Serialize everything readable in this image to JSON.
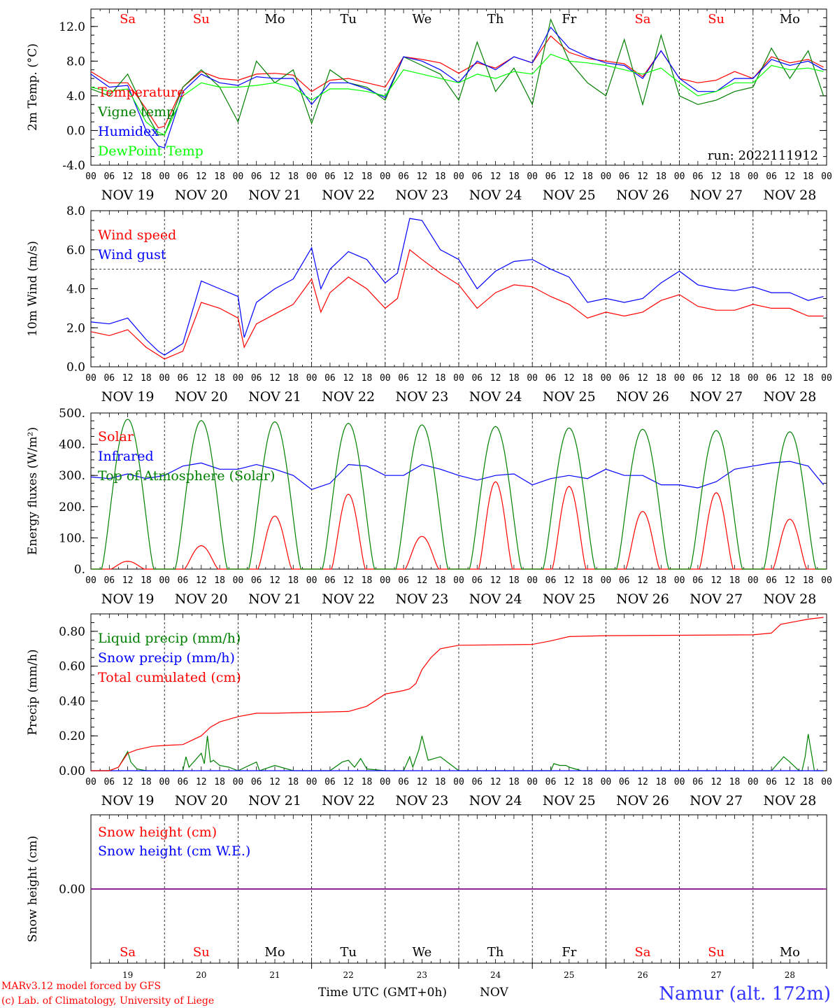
{
  "chart_data": [
    {
      "type": "line",
      "ylabel": "2m Temp. (°C)",
      "ylim": [
        -4,
        14
      ],
      "yticks": [
        "-4.0",
        "0.0",
        "4.0",
        "8.0",
        "12.0"
      ],
      "legend": [
        "Temperature",
        "Vigne temp",
        "Humidex",
        "DewPoint Temp"
      ],
      "run_label": "run: 2022111912",
      "series": [
        {
          "name": "Temperature",
          "color": "#ff0000",
          "x": [
            0,
            6,
            12,
            18,
            22,
            24,
            30,
            36,
            42,
            48,
            54,
            60,
            66,
            72,
            78,
            84,
            90,
            96,
            102,
            108,
            114,
            120,
            126,
            132,
            138,
            144,
            150,
            156,
            162,
            168,
            174,
            180,
            186,
            192,
            198,
            204,
            210,
            216,
            222,
            228,
            234,
            239
          ],
          "y": [
            6.8,
            5.5,
            5.5,
            2.5,
            0.3,
            0.5,
            5.0,
            6.8,
            6.0,
            5.8,
            6.5,
            6.6,
            6.4,
            4.5,
            5.8,
            6.0,
            5.5,
            5.0,
            8.5,
            8.2,
            7.8,
            6.6,
            7.8,
            7.2,
            8.5,
            7.8,
            10.9,
            9.0,
            8.3,
            8.0,
            7.7,
            6.2,
            9.2,
            6.0,
            5.5,
            5.8,
            6.8,
            6.0,
            8.5,
            7.8,
            8.2,
            7.3
          ]
        },
        {
          "name": "Vigne temp",
          "color": "#008000",
          "x": [
            0,
            6,
            12,
            18,
            22,
            24,
            30,
            36,
            42,
            48,
            54,
            60,
            66,
            72,
            78,
            84,
            90,
            96,
            102,
            108,
            114,
            120,
            126,
            132,
            138,
            144,
            150,
            156,
            162,
            168,
            174,
            180,
            186,
            192,
            198,
            204,
            210,
            216,
            222,
            228,
            234,
            239
          ],
          "y": [
            4.8,
            4.0,
            6.5,
            2.0,
            -0.5,
            -0.5,
            5.0,
            7.0,
            5.0,
            1.0,
            8.0,
            5.5,
            7.0,
            0.8,
            7.0,
            5.5,
            5.0,
            3.5,
            8.5,
            7.5,
            6.5,
            3.5,
            10.2,
            4.5,
            7.2,
            3.0,
            12.8,
            8.0,
            5.5,
            4.0,
            10.5,
            3.0,
            11.0,
            4.0,
            3.0,
            3.5,
            4.5,
            5.0,
            9.5,
            6.0,
            9.2,
            4.0
          ]
        },
        {
          "name": "Humidex",
          "color": "#0000ff",
          "x": [
            0,
            6,
            12,
            18,
            22,
            24,
            30,
            36,
            42,
            48,
            54,
            60,
            66,
            72,
            78,
            84,
            90,
            96,
            102,
            108,
            114,
            120,
            126,
            132,
            138,
            144,
            150,
            156,
            162,
            168,
            174,
            180,
            186,
            192,
            198,
            204,
            210,
            216,
            222,
            228,
            234,
            239
          ],
          "y": [
            6.5,
            5.0,
            5.2,
            0.0,
            -1.8,
            -2.0,
            4.5,
            6.5,
            5.5,
            5.2,
            6.2,
            6.0,
            6.0,
            3.0,
            5.5,
            5.5,
            4.8,
            3.8,
            8.5,
            8.0,
            7.0,
            5.5,
            8.0,
            7.0,
            8.5,
            7.8,
            11.9,
            9.5,
            8.5,
            7.8,
            7.5,
            6.0,
            9.2,
            6.0,
            4.5,
            4.5,
            6.0,
            6.0,
            8.2,
            7.5,
            8.0,
            7.0
          ]
        },
        {
          "name": "DewPoint Temp",
          "color": "#00ff00",
          "x": [
            0,
            6,
            12,
            18,
            22,
            24,
            30,
            36,
            42,
            48,
            54,
            60,
            66,
            72,
            78,
            84,
            90,
            96,
            102,
            108,
            114,
            120,
            126,
            132,
            138,
            144,
            150,
            156,
            162,
            168,
            174,
            180,
            186,
            192,
            198,
            204,
            210,
            216,
            222,
            228,
            234,
            239
          ],
          "y": [
            5.0,
            4.5,
            4.8,
            1.0,
            -0.2,
            -0.5,
            4.0,
            5.5,
            5.0,
            5.0,
            5.2,
            5.5,
            5.0,
            3.5,
            4.8,
            4.8,
            4.5,
            4.0,
            7.0,
            6.5,
            6.0,
            5.5,
            6.5,
            6.0,
            6.8,
            6.5,
            8.8,
            8.0,
            7.8,
            7.5,
            7.0,
            6.5,
            7.2,
            5.5,
            4.0,
            4.5,
            5.5,
            5.5,
            7.5,
            7.0,
            7.2,
            6.8
          ]
        }
      ]
    },
    {
      "type": "line",
      "ylabel": "10m Wind (m/s)",
      "ylim": [
        0,
        8
      ],
      "yticks": [
        "0.0",
        "2.0",
        "4.0",
        "6.0",
        "8.0"
      ],
      "reference_line": 5.0,
      "legend": [
        "Wind speed",
        "Wind gust"
      ],
      "series": [
        {
          "name": "Wind speed",
          "color": "#ff0000",
          "x": [
            0,
            6,
            12,
            18,
            22,
            24,
            30,
            36,
            42,
            48,
            50,
            54,
            60,
            66,
            72,
            75,
            78,
            84,
            90,
            96,
            100,
            104,
            108,
            114,
            120,
            126,
            132,
            138,
            144,
            150,
            156,
            162,
            168,
            174,
            180,
            186,
            192,
            198,
            204,
            210,
            216,
            222,
            228,
            234,
            239
          ],
          "y": [
            1.8,
            1.6,
            1.9,
            1.0,
            0.6,
            0.4,
            0.8,
            3.3,
            3.0,
            2.5,
            1.0,
            2.2,
            2.7,
            3.2,
            4.5,
            2.8,
            3.8,
            4.6,
            4.0,
            3.0,
            3.5,
            6.0,
            5.5,
            4.8,
            4.2,
            3.0,
            3.8,
            4.2,
            4.1,
            3.6,
            3.2,
            2.5,
            2.8,
            2.6,
            2.8,
            3.4,
            3.7,
            3.1,
            2.9,
            2.9,
            3.2,
            3.0,
            3.0,
            2.6,
            2.6
          ]
        },
        {
          "name": "Wind gust",
          "color": "#0000ff",
          "x": [
            0,
            6,
            12,
            18,
            22,
            24,
            30,
            36,
            42,
            48,
            50,
            54,
            60,
            66,
            72,
            75,
            78,
            84,
            90,
            96,
            100,
            104,
            108,
            114,
            120,
            126,
            132,
            138,
            144,
            150,
            156,
            162,
            168,
            174,
            180,
            186,
            192,
            198,
            204,
            210,
            216,
            222,
            228,
            234,
            239
          ],
          "y": [
            2.3,
            2.2,
            2.5,
            1.4,
            0.8,
            0.6,
            1.2,
            4.4,
            4.0,
            3.6,
            1.5,
            3.3,
            4.0,
            4.5,
            6.1,
            4.0,
            5.0,
            5.9,
            5.5,
            4.3,
            4.8,
            7.6,
            7.5,
            6.0,
            5.5,
            4.0,
            4.9,
            5.4,
            5.5,
            5.0,
            4.6,
            3.3,
            3.5,
            3.3,
            3.5,
            4.3,
            4.9,
            4.2,
            4.0,
            3.9,
            4.1,
            3.8,
            3.8,
            3.4,
            3.6
          ]
        }
      ]
    },
    {
      "type": "line",
      "ylabel": "Energy fluxes (W/m²)",
      "ylim": [
        0,
        500
      ],
      "yticks": [
        "0.",
        "100.",
        "200.",
        "300.",
        "400.",
        "500."
      ],
      "legend": [
        "Solar",
        "Infrared",
        "Top of Atmosphere (Solar)"
      ],
      "series": [
        {
          "name": "Solar",
          "color": "#ff0000",
          "peaks": [
            25,
            75,
            170,
            240,
            105,
            280,
            265,
            185,
            245,
            160
          ]
        },
        {
          "name": "Infrared",
          "color": "#0000ff",
          "x": [
            0,
            6,
            12,
            18,
            24,
            30,
            36,
            42,
            48,
            54,
            60,
            66,
            72,
            78,
            84,
            90,
            96,
            102,
            108,
            114,
            120,
            126,
            132,
            138,
            144,
            150,
            156,
            162,
            168,
            174,
            180,
            186,
            192,
            198,
            204,
            210,
            216,
            222,
            228,
            234,
            239
          ],
          "y": [
            295,
            290,
            305,
            290,
            300,
            330,
            340,
            320,
            320,
            335,
            320,
            300,
            255,
            275,
            335,
            330,
            300,
            300,
            335,
            320,
            300,
            285,
            300,
            305,
            270,
            290,
            300,
            290,
            320,
            300,
            300,
            270,
            270,
            260,
            280,
            320,
            330,
            340,
            345,
            330,
            270
          ]
        },
        {
          "name": "Top of Atmosphere (Solar)",
          "color": "#008000",
          "peaks": [
            480,
            476,
            472,
            467,
            462,
            457,
            452,
            448,
            444,
            440
          ]
        }
      ]
    },
    {
      "type": "line",
      "ylabel": "Precip (mm/h)",
      "ylim": [
        0,
        0.9
      ],
      "yticks": [
        "0.00",
        "0.20",
        "0.40",
        "0.60",
        "0.80"
      ],
      "legend": [
        "Liquid precip (mm/h)",
        "Snow precip (mm/h)",
        "Total cumulated (cm)"
      ],
      "series": [
        {
          "name": "Liquid precip (mm/h)",
          "color": "#008000",
          "x": [
            0,
            6,
            9,
            11,
            12,
            13,
            15,
            18,
            24,
            30,
            31,
            32,
            36,
            37,
            38,
            39,
            40,
            42,
            45,
            48,
            54,
            55,
            60,
            66,
            72,
            78,
            82,
            84,
            86,
            88,
            90,
            96,
            102,
            104,
            105,
            107,
            108,
            110,
            114,
            120,
            144,
            150,
            151,
            153,
            155,
            156,
            158,
            160,
            168,
            216,
            222,
            225,
            226,
            228,
            231,
            232,
            233,
            234,
            236,
            239
          ],
          "y": [
            0,
            0,
            0.02,
            0.08,
            0.11,
            0.05,
            0.01,
            0,
            0,
            0,
            0.08,
            0.02,
            0.1,
            0.04,
            0.2,
            0.05,
            0.06,
            0.03,
            0.02,
            0,
            0.05,
            0,
            0.03,
            0,
            0,
            0,
            0.05,
            0.06,
            0.02,
            0.07,
            0.01,
            0,
            0,
            0.08,
            0.02,
            0.12,
            0.2,
            0.06,
            0.08,
            0,
            0,
            0,
            0.04,
            0.03,
            0.03,
            0.02,
            0.01,
            0,
            0,
            0,
            0,
            0.06,
            0.08,
            0.05,
            0,
            0,
            0.08,
            0.21,
            0,
            0
          ]
        },
        {
          "name": "Snow precip (mm/h)",
          "color": "#0000ff",
          "x": [
            0,
            239
          ],
          "y": [
            0,
            0
          ]
        },
        {
          "name": "Total cumulated (cm)",
          "color": "#ff0000",
          "x": [
            0,
            6,
            9,
            12,
            15,
            20,
            24,
            30,
            36,
            39,
            42,
            48,
            54,
            60,
            72,
            84,
            90,
            96,
            102,
            104,
            106,
            108,
            111,
            114,
            120,
            144,
            150,
            156,
            168,
            216,
            222,
            225,
            234,
            239
          ],
          "y": [
            0,
            0,
            0.02,
            0.1,
            0.12,
            0.14,
            0.145,
            0.15,
            0.2,
            0.25,
            0.28,
            0.31,
            0.33,
            0.33,
            0.335,
            0.34,
            0.37,
            0.44,
            0.46,
            0.47,
            0.5,
            0.58,
            0.65,
            0.7,
            0.72,
            0.725,
            0.745,
            0.77,
            0.775,
            0.78,
            0.79,
            0.84,
            0.87,
            0.88
          ]
        }
      ]
    },
    {
      "type": "line",
      "ylabel": "Snow height (cm)",
      "ylim": [
        -1,
        1
      ],
      "yticks": [
        "0.00"
      ],
      "legend": [
        "Snow height (cm)",
        "Snow height (cm W.E.)"
      ],
      "series": [
        {
          "name": "Snow height (cm)",
          "color": "#ff0000",
          "x": [
            0,
            239
          ],
          "y": [
            0,
            0
          ]
        },
        {
          "name": "Snow height (cm W.E.)",
          "color": "#0000ff",
          "x": [
            0,
            239
          ],
          "y": [
            0,
            0
          ]
        }
      ]
    }
  ],
  "days": {
    "weekday": [
      "Sa",
      "Su",
      "Mo",
      "Tu",
      "We",
      "Th",
      "Fr",
      "Sa",
      "Su",
      "Mo"
    ],
    "weekday_colors": [
      "#ff0000",
      "#ff0000",
      "#000000",
      "#000000",
      "#000000",
      "#000000",
      "#000000",
      "#ff0000",
      "#ff0000",
      "#000000"
    ],
    "date_labels": [
      "NOV 19",
      "NOV 20",
      "NOV 21",
      "NOV 22",
      "NOV 23",
      "NOV 24",
      "NOV 25",
      "NOV 26",
      "NOV 27",
      "NOV 28"
    ],
    "day_numbers": [
      "19",
      "20",
      "21",
      "22",
      "23",
      "24",
      "25",
      "26",
      "27",
      "28"
    ],
    "hour_ticks": [
      "00",
      "06",
      "12",
      "18"
    ],
    "last_hour_tick": "00"
  },
  "footer": {
    "model_credit": "MARv3.12 model forced by GFS",
    "lab_credit": "(c) Lab. of Climatology, University of Liege",
    "xaxis_title": "Time UTC (GMT+0h)",
    "month_label": "NOV",
    "location": "Namur (alt. 172m)"
  }
}
